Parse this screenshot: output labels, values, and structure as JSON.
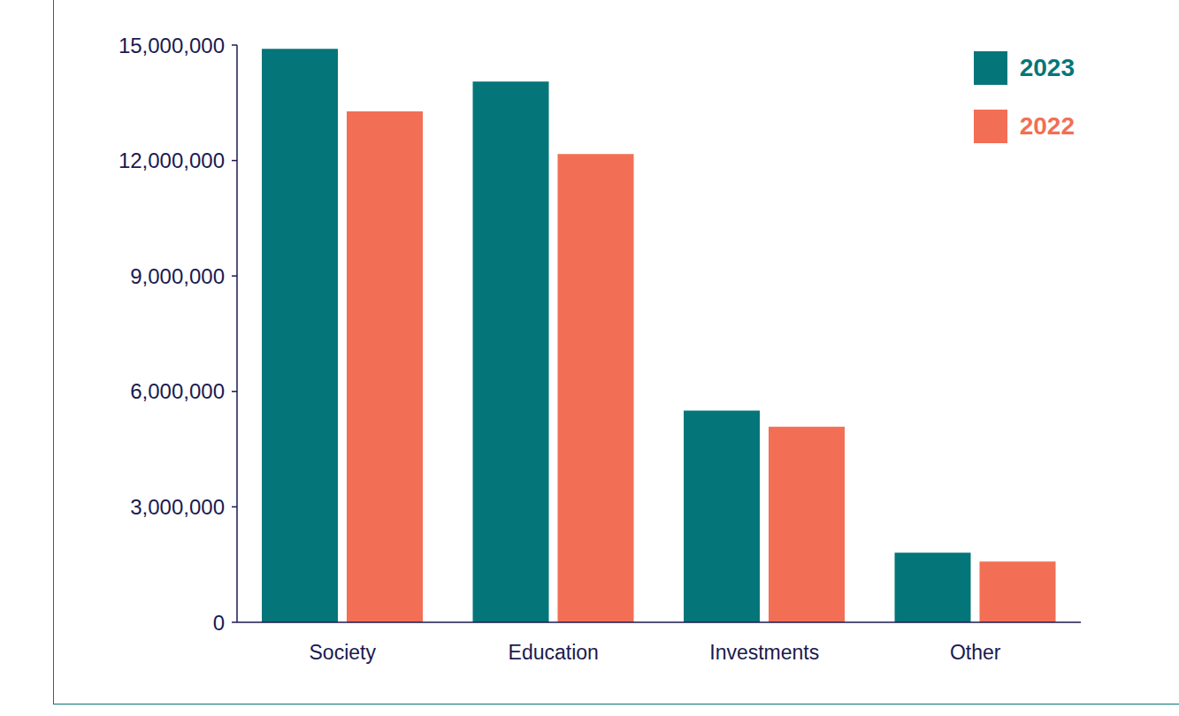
{
  "chart_data": {
    "type": "bar",
    "categories": [
      "Society",
      "Education",
      "Investments",
      "Other"
    ],
    "series": [
      {
        "name": "2023",
        "color": "#04767a",
        "values": [
          14900000,
          14050000,
          5500000,
          1810000
        ]
      },
      {
        "name": "2022",
        "color": "#f26f55",
        "values": [
          13280000,
          12170000,
          5080000,
          1580000
        ]
      }
    ],
    "ylim": [
      0,
      15000000
    ],
    "yticks": [
      0,
      {
        "value": 3000000,
        "label": "3,000,000"
      },
      {
        "value": 6000000,
        "label": "6,000,000"
      },
      {
        "value": 9000000,
        "label": "9,000,000"
      },
      {
        "value": 12000000,
        "label": "12,000,000"
      },
      {
        "value": 15000000,
        "label": "15,000,000"
      }
    ],
    "grid": false,
    "legend": "top right"
  }
}
